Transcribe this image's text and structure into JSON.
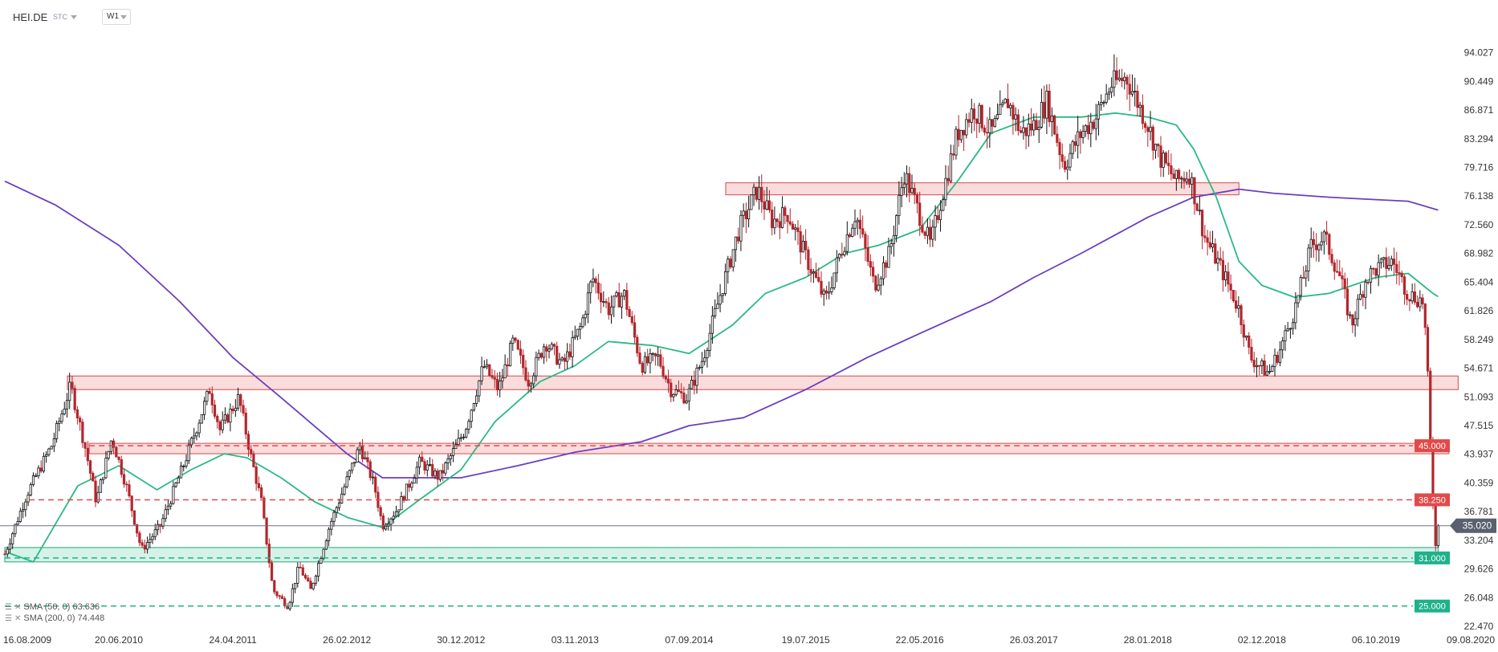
{
  "header": {
    "symbol": "HEI.DE",
    "market": "STC",
    "timeframe": "W1"
  },
  "legend": [
    {
      "label": "SMA (50, 0) 63.636",
      "color": "#2ab985"
    },
    {
      "label": "SMA (200, 0) 74.448",
      "color": "#6a3fc0"
    }
  ],
  "chart_data": {
    "type": "candlestick",
    "title": "",
    "ylim": [
      22.47,
      97.6
    ],
    "y_ticks": [
      "94.027",
      "90.449",
      "86.871",
      "83.294",
      "79.716",
      "76.138",
      "72.560",
      "68.982",
      "65.404",
      "61.826",
      "58.249",
      "54.671",
      "51.093",
      "47.515",
      "43.937",
      "40.359",
      "36.781",
      "33.204",
      "29.626",
      "26.048",
      "22.470"
    ],
    "x_ticks": [
      "16.08.2009",
      "20.06.2010",
      "24.04.2011",
      "26.02.2012",
      "30.12.2012",
      "03.11.2013",
      "07.09.2014",
      "19.07.2015",
      "22.05.2016",
      "26.03.2017",
      "28.01.2018",
      "02.12.2018",
      "06.10.2019",
      "09.08.2020"
    ],
    "x_range": [
      "2009-08-16",
      "2020-08-09"
    ],
    "last_price": 35.02,
    "last_price_label": "35.020",
    "candle_colors": {
      "up": "#111111",
      "down": "#b3262d"
    },
    "price_path": [
      [
        "2009-08-16",
        31.5
      ],
      [
        "2009-10-15",
        39
      ],
      [
        "2009-12-20",
        45
      ],
      [
        "2010-02-10",
        52.5
      ],
      [
        "2010-03-20",
        45
      ],
      [
        "2010-04-20",
        38
      ],
      [
        "2010-06-01",
        46
      ],
      [
        "2010-07-10",
        40
      ],
      [
        "2010-08-20",
        32
      ],
      [
        "2010-10-10",
        35
      ],
      [
        "2010-12-15",
        43
      ],
      [
        "2011-02-20",
        52
      ],
      [
        "2011-03-20",
        47
      ],
      [
        "2011-05-10",
        51
      ],
      [
        "2011-06-10",
        44
      ],
      [
        "2011-07-10",
        38
      ],
      [
        "2011-08-10",
        27
      ],
      [
        "2011-09-20",
        25
      ],
      [
        "2011-10-20",
        30
      ],
      [
        "2011-11-20",
        27
      ],
      [
        "2012-01-10",
        35
      ],
      [
        "2012-02-20",
        40
      ],
      [
        "2012-04-01",
        45
      ],
      [
        "2012-05-10",
        40
      ],
      [
        "2012-06-01",
        35
      ],
      [
        "2012-07-10",
        37
      ],
      [
        "2012-09-10",
        43
      ],
      [
        "2012-11-01",
        41
      ],
      [
        "2013-01-10",
        47
      ],
      [
        "2013-03-01",
        55
      ],
      [
        "2013-04-10",
        52
      ],
      [
        "2013-05-20",
        58
      ],
      [
        "2013-07-01",
        53
      ],
      [
        "2013-08-15",
        58
      ],
      [
        "2013-10-01",
        55
      ],
      [
        "2013-11-20",
        60
      ],
      [
        "2013-12-20",
        66
      ],
      [
        "2014-02-01",
        62
      ],
      [
        "2014-03-15",
        64
      ],
      [
        "2014-05-01",
        55
      ],
      [
        "2014-06-15",
        56
      ],
      [
        "2014-07-20",
        52
      ],
      [
        "2014-09-01",
        51
      ],
      [
        "2014-10-15",
        56
      ],
      [
        "2014-12-01",
        64
      ],
      [
        "2015-01-20",
        72
      ],
      [
        "2015-03-10",
        77
      ],
      [
        "2015-04-20",
        73
      ],
      [
        "2015-06-01",
        74
      ],
      [
        "2015-07-15",
        69
      ],
      [
        "2015-09-10",
        63
      ],
      [
        "2015-10-20",
        69
      ],
      [
        "2015-12-01",
        74
      ],
      [
        "2016-01-20",
        65
      ],
      [
        "2016-03-01",
        69
      ],
      [
        "2016-04-10",
        79
      ],
      [
        "2016-05-20",
        74
      ],
      [
        "2016-06-20",
        70
      ],
      [
        "2016-07-20",
        76
      ],
      [
        "2016-09-01",
        84
      ],
      [
        "2016-10-15",
        87
      ],
      [
        "2016-12-01",
        84
      ],
      [
        "2017-01-15",
        88
      ],
      [
        "2017-02-20",
        84
      ],
      [
        "2017-03-26",
        85
      ],
      [
        "2017-05-01",
        88
      ],
      [
        "2017-06-15",
        80
      ],
      [
        "2017-08-01",
        84
      ],
      [
        "2017-09-10",
        86
      ],
      [
        "2017-10-20",
        90
      ],
      [
        "2017-12-01",
        91
      ],
      [
        "2018-01-28",
        85
      ],
      [
        "2018-03-01",
        81
      ],
      [
        "2018-04-15",
        78
      ],
      [
        "2018-05-20",
        79
      ],
      [
        "2018-07-01",
        71
      ],
      [
        "2018-08-15",
        67
      ],
      [
        "2018-10-01",
        62
      ],
      [
        "2018-11-01",
        56
      ],
      [
        "2018-12-20",
        54
      ],
      [
        "2019-01-20",
        57
      ],
      [
        "2019-03-01",
        62
      ],
      [
        "2019-04-15",
        70
      ],
      [
        "2019-05-20",
        71
      ],
      [
        "2019-07-01",
        66
      ],
      [
        "2019-08-01",
        60
      ],
      [
        "2019-09-10",
        66
      ],
      [
        "2019-10-06",
        67
      ],
      [
        "2019-11-20",
        68
      ],
      [
        "2020-01-01",
        64
      ],
      [
        "2020-02-10",
        63
      ],
      [
        "2020-02-20",
        57
      ],
      [
        "2020-03-01",
        45
      ],
      [
        "2020-03-08",
        38
      ],
      [
        "2020-03-15",
        33
      ],
      [
        "2020-03-22",
        35
      ]
    ],
    "sma50": [
      [
        "2009-08-16",
        31.8
      ],
      [
        "2009-11-01",
        30.5
      ],
      [
        "2010-03-01",
        40
      ],
      [
        "2010-06-20",
        42.5
      ],
      [
        "2010-10-01",
        39.5
      ],
      [
        "2011-01-01",
        42
      ],
      [
        "2011-04-01",
        44
      ],
      [
        "2011-06-01",
        43.5
      ],
      [
        "2011-09-01",
        41
      ],
      [
        "2011-12-01",
        38
      ],
      [
        "2012-03-01",
        36
      ],
      [
        "2012-06-01",
        34.8
      ],
      [
        "2012-09-01",
        38
      ],
      [
        "2012-12-30",
        42
      ],
      [
        "2013-04-01",
        48
      ],
      [
        "2013-08-01",
        53
      ],
      [
        "2013-11-03",
        55
      ],
      [
        "2014-02-01",
        58
      ],
      [
        "2014-06-01",
        57.5
      ],
      [
        "2014-09-07",
        56.5
      ],
      [
        "2015-01-01",
        60
      ],
      [
        "2015-04-01",
        64
      ],
      [
        "2015-07-19",
        66
      ],
      [
        "2015-11-01",
        69
      ],
      [
        "2016-02-01",
        70
      ],
      [
        "2016-05-22",
        72
      ],
      [
        "2016-09-01",
        78
      ],
      [
        "2016-12-01",
        84
      ],
      [
        "2017-03-26",
        86
      ],
      [
        "2017-08-01",
        86
      ],
      [
        "2017-11-01",
        86.5
      ],
      [
        "2018-01-28",
        86
      ],
      [
        "2018-04-15",
        85
      ],
      [
        "2018-06-01",
        82
      ],
      [
        "2018-08-01",
        76
      ],
      [
        "2018-10-01",
        68
      ],
      [
        "2018-12-02",
        65
      ],
      [
        "2019-03-01",
        63.5
      ],
      [
        "2019-06-01",
        64
      ],
      [
        "2019-10-06",
        66
      ],
      [
        "2020-01-01",
        66.5
      ],
      [
        "2020-03-08",
        64
      ],
      [
        "2020-03-22",
        63.6
      ]
    ],
    "sma200": [
      [
        "2009-08-16",
        78
      ],
      [
        "2010-01-01",
        75
      ],
      [
        "2010-06-20",
        70
      ],
      [
        "2010-12-01",
        63
      ],
      [
        "2011-04-24",
        56
      ],
      [
        "2011-09-01",
        51
      ],
      [
        "2012-02-26",
        44
      ],
      [
        "2012-06-01",
        41
      ],
      [
        "2012-12-30",
        41
      ],
      [
        "2013-06-01",
        42.5
      ],
      [
        "2013-11-03",
        44.2
      ],
      [
        "2014-05-01",
        45.5
      ],
      [
        "2014-09-07",
        47.5
      ],
      [
        "2015-02-01",
        48.5
      ],
      [
        "2015-07-19",
        52
      ],
      [
        "2016-01-01",
        56
      ],
      [
        "2016-05-22",
        59
      ],
      [
        "2016-12-01",
        63
      ],
      [
        "2017-03-26",
        66
      ],
      [
        "2017-08-01",
        69
      ],
      [
        "2018-01-28",
        73.5
      ],
      [
        "2018-06-01",
        76
      ],
      [
        "2018-10-01",
        77
      ],
      [
        "2019-01-01",
        76.5
      ],
      [
        "2019-06-01",
        76
      ],
      [
        "2019-10-06",
        75.7
      ],
      [
        "2020-01-01",
        75.5
      ],
      [
        "2020-03-22",
        74.4
      ]
    ],
    "zones": [
      {
        "kind": "resistance",
        "y0": 76.3,
        "y1": 77.8,
        "x0": "2014-12-15",
        "x1": "2018-10-01"
      },
      {
        "kind": "resistance",
        "y0": 52.0,
        "y1": 53.7,
        "x0": "2010-02-01",
        "x1": "2020-05-15"
      },
      {
        "kind": "resistance",
        "y0": 44.0,
        "y1": 45.3,
        "x0": "2010-04-01",
        "x1": "2020-04-20"
      },
      {
        "kind": "support",
        "y0": 30.5,
        "y1": 32.3,
        "x0": "2009-08-16",
        "x1": "2020-03-22"
      }
    ],
    "levels": [
      {
        "value": 45.0,
        "label": "45.000",
        "color": "#e24a4a",
        "x0": "2010-04-01"
      },
      {
        "value": 38.25,
        "label": "38.250",
        "color": "#e24a4a",
        "x0": "2009-10-20"
      },
      {
        "value": 31.0,
        "label": "31.000",
        "color": "#1fb28a",
        "x0": "2009-08-16"
      },
      {
        "value": 25.0,
        "label": "25.000",
        "color": "#1fb28a",
        "x0": "2009-08-16"
      }
    ]
  }
}
